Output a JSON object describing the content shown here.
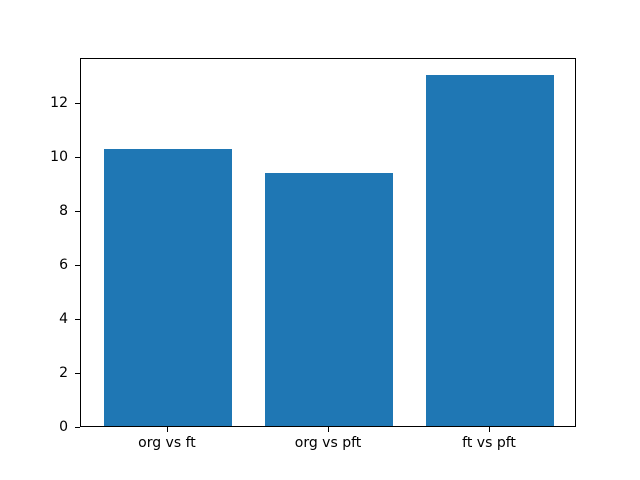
{
  "figure": {
    "background": "#ffffff"
  },
  "chart_data": {
    "type": "bar",
    "title": "",
    "xlabel": "",
    "ylabel": "",
    "categories": [
      "org vs ft",
      "org vs pft",
      "ft vs pft"
    ],
    "x": [
      0,
      1,
      2
    ],
    "values": [
      10.25,
      9.35,
      13.0
    ],
    "yticks": [
      0,
      2,
      4,
      6,
      8,
      10,
      12
    ],
    "ylim": [
      0,
      13.65
    ],
    "xlim": [
      -0.54,
      2.54
    ],
    "bar_width": 0.8,
    "bar_color": "#1f77b4",
    "axis_color": "#000000",
    "text_color": "#000000",
    "grid": false,
    "legend": false
  }
}
